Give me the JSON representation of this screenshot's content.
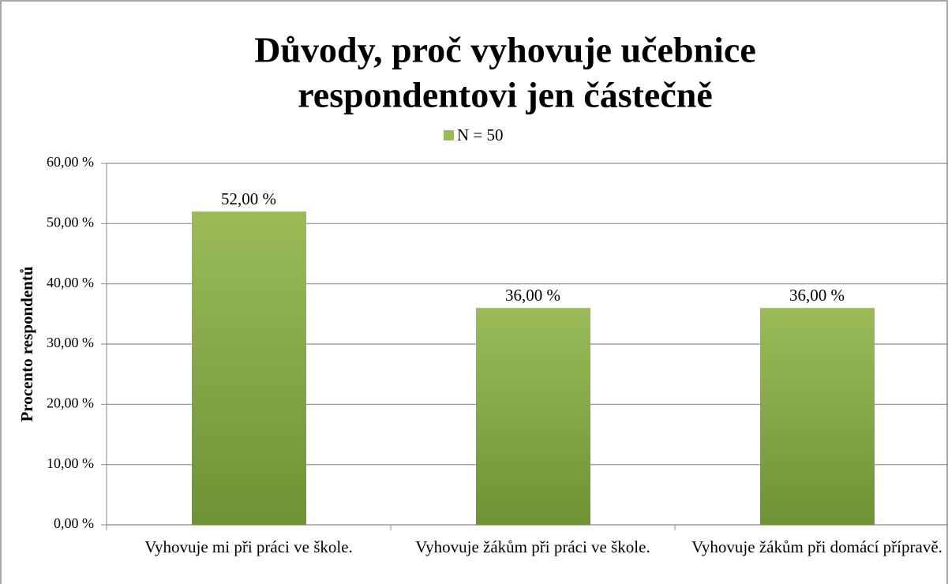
{
  "chart_data": {
    "type": "bar",
    "title": "Důvody, proč vyhovuje učebnice respondentovi jen částečně",
    "y_label": "Procento respondentů",
    "categories": [
      "Vyhovuje mi při práci ve škole.",
      "Vyhovuje žákům při práci ve škole.",
      "Vyhovuje žákům při domácí přípravě."
    ],
    "series": [
      {
        "name": "N = 50",
        "color": "#9bbb59",
        "values": [
          52,
          36,
          36
        ],
        "value_labels": [
          "52,00 %",
          "36,00 %",
          "36,00 %"
        ]
      }
    ],
    "ylim": [
      0,
      60
    ],
    "yticks": [
      {
        "value": 0,
        "label": "0,00 %"
      },
      {
        "value": 10,
        "label": "10,00 %"
      },
      {
        "value": 20,
        "label": "20,00 %"
      },
      {
        "value": 30,
        "label": "30,00 %"
      },
      {
        "value": 40,
        "label": "40,00 %"
      },
      {
        "value": 50,
        "label": "50,00 %"
      },
      {
        "value": 60,
        "label": "60,00 %"
      }
    ],
    "grid": true,
    "legend": "top"
  }
}
